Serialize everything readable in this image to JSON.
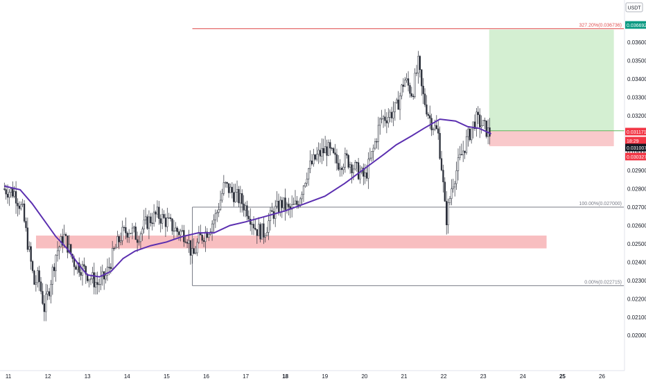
{
  "chart_data": {
    "type": "candlestick",
    "currency": "USDT",
    "x_labels": [
      "11",
      "12",
      "13",
      "14",
      "15",
      "16",
      "17",
      "18",
      "19",
      "20",
      "21",
      "22",
      "23",
      "24",
      "25",
      "26"
    ],
    "y_ticks": [
      "0.036000",
      "0.035000",
      "0.034000",
      "0.033000",
      "0.032000",
      "0.030000",
      "0.029000",
      "0.028000",
      "0.027000",
      "0.026000",
      "0.025000",
      "0.024000",
      "0.023000",
      "0.022000",
      "0.021000",
      "0.020000"
    ],
    "ylim": [
      0.0195,
      0.0375
    ],
    "price_markers": [
      {
        "label": "0.036692",
        "value": 0.036692,
        "color": "#089981"
      },
      {
        "label": "0.031171",
        "value": 0.031171,
        "color": "#f23645"
      },
      {
        "label": "18:29",
        "value": 0.03079,
        "color": "#f23645"
      },
      {
        "label": "0.031007",
        "value": 0.031007,
        "color": "#131722"
      },
      {
        "label": "0.030327",
        "value": 0.030327,
        "color": "#f23645"
      }
    ],
    "fib_levels": [
      {
        "label": "327.20%(0.036736)",
        "value": 0.036736,
        "color": "#e05050"
      },
      {
        "label": "100.00%(0.027000)",
        "value": 0.027,
        "color": "#787b86"
      },
      {
        "label": "0.00%(0.022715)",
        "value": 0.022715,
        "color": "#787b86"
      }
    ],
    "zones": [
      {
        "kind": "support",
        "x_start": 11.7,
        "x_end": 24.6,
        "low": 0.02475,
        "high": 0.02545,
        "color": "#f7b3b5"
      },
      {
        "kind": "target",
        "x_start": 23.15,
        "x_end": 26.3,
        "low": 0.031171,
        "high": 0.036692,
        "color": "#d4efd2"
      },
      {
        "kind": "stop",
        "x_start": 23.15,
        "x_end": 26.3,
        "low": 0.030327,
        "high": 0.031171,
        "color": "#f9c9cb"
      }
    ],
    "fib_anchor_x": 15.65,
    "candle_range": [
      10.9,
      23.2
    ],
    "ma_series": {
      "color": "#5b2fb0",
      "points": [
        [
          10.9,
          0.02815
        ],
        [
          11.3,
          0.02795
        ],
        [
          11.6,
          0.0272
        ],
        [
          11.9,
          0.0263
        ],
        [
          12.2,
          0.0254
        ],
        [
          12.5,
          0.0247
        ],
        [
          12.8,
          0.0238
        ],
        [
          13.0,
          0.0233
        ],
        [
          13.3,
          0.0232
        ],
        [
          13.6,
          0.0235
        ],
        [
          13.9,
          0.0242
        ],
        [
          14.2,
          0.0246
        ],
        [
          14.6,
          0.0249
        ],
        [
          15.0,
          0.0251
        ],
        [
          15.4,
          0.0254
        ],
        [
          15.8,
          0.0256
        ],
        [
          16.2,
          0.0256
        ],
        [
          16.6,
          0.026
        ],
        [
          17.0,
          0.0262
        ],
        [
          17.5,
          0.0265
        ],
        [
          18.0,
          0.0268
        ],
        [
          18.5,
          0.0272
        ],
        [
          19.0,
          0.0276
        ],
        [
          19.5,
          0.0283
        ],
        [
          20.0,
          0.0291
        ],
        [
          20.5,
          0.0299
        ],
        [
          20.8,
          0.0304
        ],
        [
          21.2,
          0.0309
        ],
        [
          21.5,
          0.0313
        ],
        [
          21.9,
          0.0318
        ],
        [
          22.3,
          0.0317
        ],
        [
          22.6,
          0.0314
        ],
        [
          22.9,
          0.0313
        ],
        [
          23.2,
          0.031
        ]
      ]
    },
    "price_path": [
      [
        10.9,
        0.028
      ],
      [
        11.2,
        0.0278
      ],
      [
        11.4,
        0.0268
      ],
      [
        11.55,
        0.0248
      ],
      [
        11.7,
        0.0228
      ],
      [
        11.8,
        0.0232
      ],
      [
        11.95,
        0.0215
      ],
      [
        12.05,
        0.0223
      ],
      [
        12.25,
        0.0245
      ],
      [
        12.45,
        0.0254
      ],
      [
        12.7,
        0.024
      ],
      [
        12.95,
        0.0236
      ],
      [
        13.1,
        0.0232
      ],
      [
        13.3,
        0.0228
      ],
      [
        13.5,
        0.0232
      ],
      [
        13.7,
        0.0245
      ],
      [
        13.9,
        0.0255
      ],
      [
        14.1,
        0.0258
      ],
      [
        14.3,
        0.0254
      ],
      [
        14.55,
        0.0262
      ],
      [
        14.8,
        0.0266
      ],
      [
        15.05,
        0.0262
      ],
      [
        15.3,
        0.0257
      ],
      [
        15.55,
        0.0255
      ],
      [
        15.7,
        0.0242
      ],
      [
        15.85,
        0.0252
      ],
      [
        16.1,
        0.0258
      ],
      [
        16.3,
        0.0266
      ],
      [
        16.5,
        0.0282
      ],
      [
        16.7,
        0.0278
      ],
      [
        16.9,
        0.0274
      ],
      [
        17.1,
        0.0268
      ],
      [
        17.3,
        0.0258
      ],
      [
        17.5,
        0.0256
      ],
      [
        17.7,
        0.0266
      ],
      [
        17.95,
        0.0272
      ],
      [
        18.15,
        0.0268
      ],
      [
        18.35,
        0.0272
      ],
      [
        18.6,
        0.029
      ],
      [
        18.85,
        0.0298
      ],
      [
        19.1,
        0.0302
      ],
      [
        19.35,
        0.0294
      ],
      [
        19.6,
        0.0296
      ],
      [
        19.85,
        0.029
      ],
      [
        20.05,
        0.0286
      ],
      [
        20.25,
        0.03
      ],
      [
        20.45,
        0.0318
      ],
      [
        20.65,
        0.032
      ],
      [
        20.85,
        0.0324
      ],
      [
        21.05,
        0.034
      ],
      [
        21.25,
        0.0332
      ],
      [
        21.4,
        0.0348
      ],
      [
        21.5,
        0.0332
      ],
      [
        21.7,
        0.0318
      ],
      [
        21.9,
        0.031
      ],
      [
        22.0,
        0.029
      ],
      [
        22.1,
        0.0262
      ],
      [
        22.25,
        0.0282
      ],
      [
        22.45,
        0.0296
      ],
      [
        22.65,
        0.0308
      ],
      [
        22.85,
        0.0318
      ],
      [
        23.05,
        0.0314
      ],
      [
        23.2,
        0.031
      ]
    ]
  }
}
